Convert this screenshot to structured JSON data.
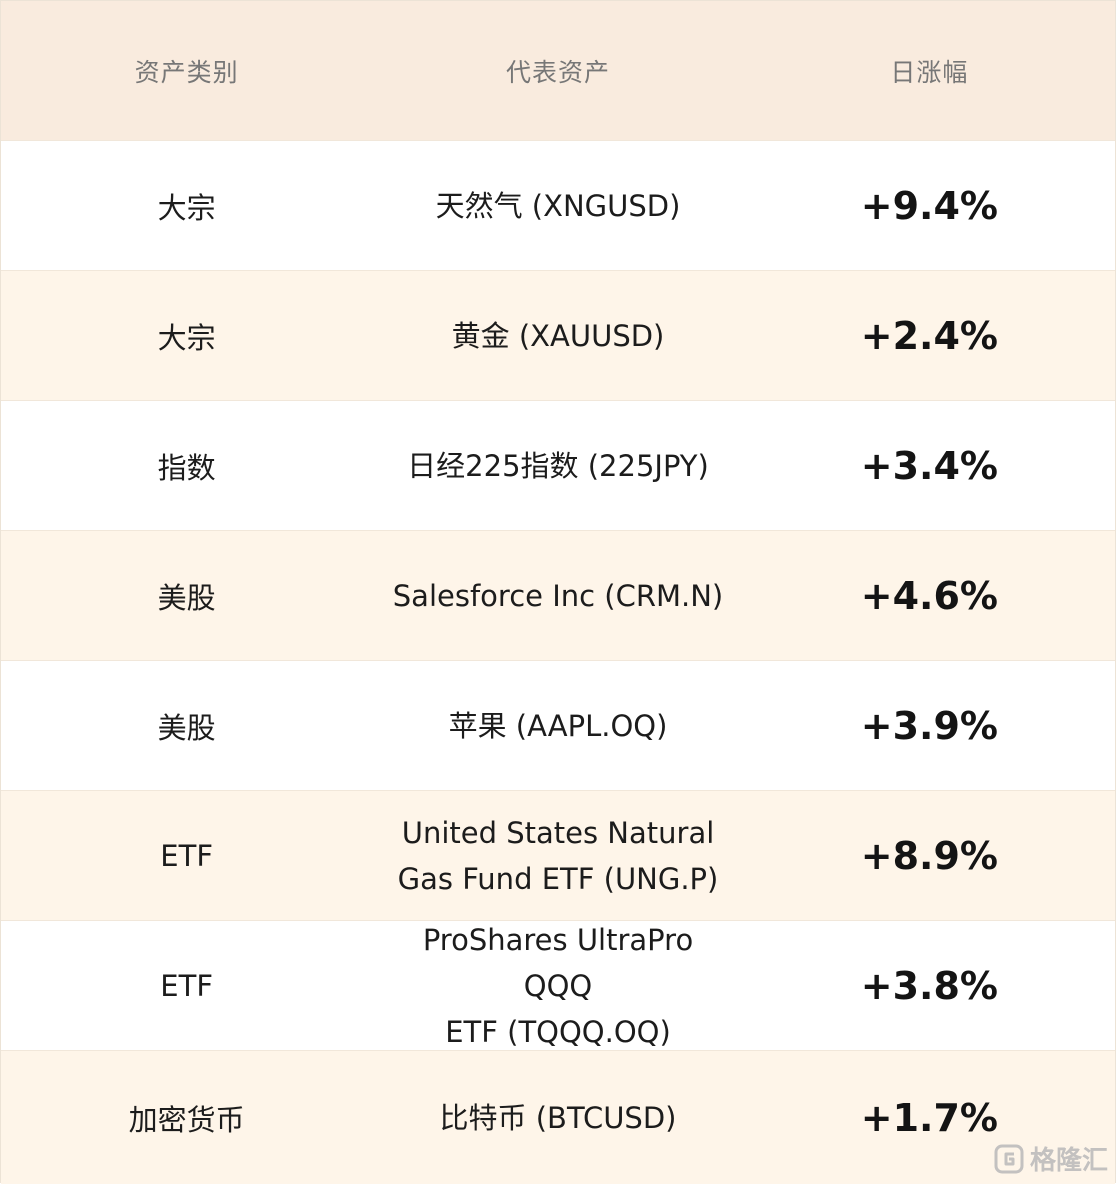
{
  "table": {
    "headers": [
      "资产类别",
      "代表资产",
      "日涨幅"
    ],
    "rows": [
      {
        "category": "大宗",
        "asset": "天然气 (XNGUSD)",
        "change": "+9.4%"
      },
      {
        "category": "大宗",
        "asset": "黄金 (XAUUSD)",
        "change": "+2.4%"
      },
      {
        "category": "指数",
        "asset": "日经225指数 (225JPY)",
        "change": "+3.4%"
      },
      {
        "category": "美股",
        "asset": "Salesforce Inc (CRM.N)",
        "change": "+4.6%"
      },
      {
        "category": "美股",
        "asset": "苹果 (AAPL.OQ)",
        "change": "+3.9%"
      },
      {
        "category": "ETF",
        "asset_line1": "United States Natural",
        "asset_line2": "Gas Fund ETF (UNG.P)",
        "change": "+8.9%"
      },
      {
        "category": "ETF",
        "asset_line1": "ProShares UltraPro QQQ",
        "asset_line2": "ETF (TQQQ.OQ)",
        "change": "+3.8%"
      },
      {
        "category": "加密货币",
        "asset": "比特币 (BTCUSD)",
        "change": "+1.7%"
      }
    ]
  },
  "watermark": {
    "icon": "gelonghui-logo-icon",
    "text": "格隆汇"
  }
}
